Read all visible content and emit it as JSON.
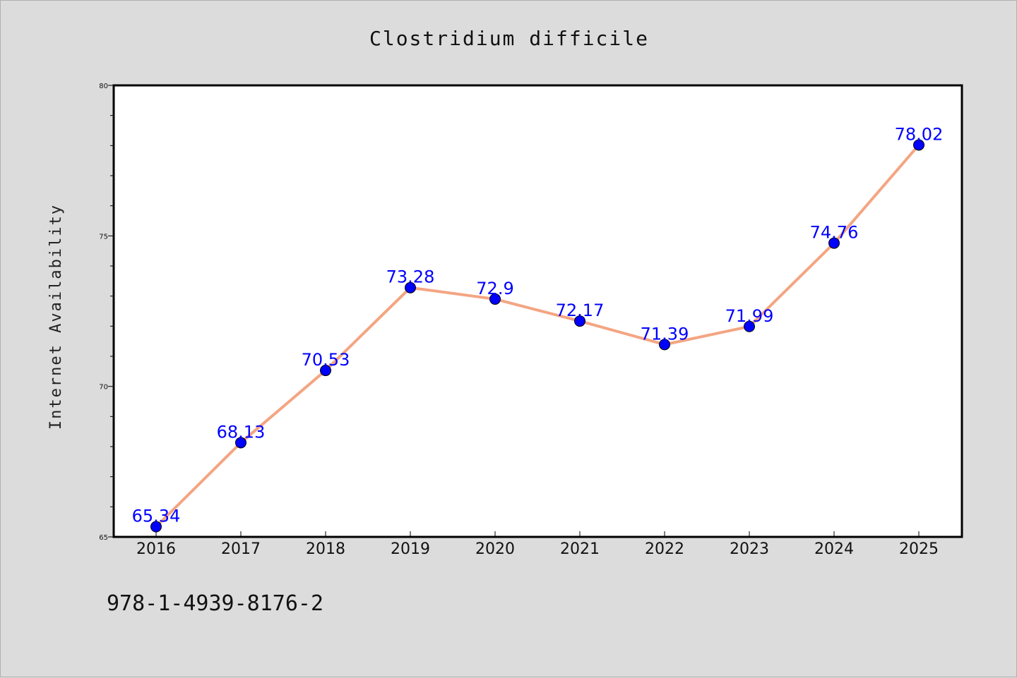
{
  "chart_data": {
    "type": "line",
    "title": "Clostridium difficile",
    "xlabel": "",
    "ylabel": "Internet Availability",
    "x": [
      "2016",
      "2017",
      "2018",
      "2019",
      "2020",
      "2021",
      "2022",
      "2023",
      "2024",
      "2025"
    ],
    "values": [
      65.34,
      68.13,
      70.53,
      73.28,
      72.9,
      72.17,
      71.39,
      71.99,
      74.76,
      78.02
    ],
    "data_labels": [
      "65.34",
      "68.13",
      "70.53",
      "73.28",
      "72.9",
      "72.17",
      "71.39",
      "71.99",
      "74.76",
      "78.02"
    ],
    "ylim": [
      65,
      80
    ],
    "yticks": [
      "65",
      "70",
      "75",
      "80"
    ],
    "grid": false,
    "line_color": "#f4a582",
    "marker_color": "#0000ff",
    "label_color": "#0000ff"
  },
  "footnote": "978-1-4939-8176-2"
}
